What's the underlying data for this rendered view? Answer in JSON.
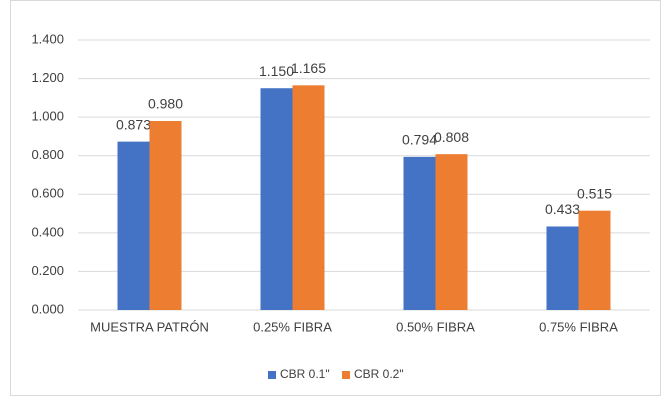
{
  "chart_data": {
    "type": "bar",
    "categories": [
      "MUESTRA PATRÓN",
      "0.25% FIBRA",
      "0.50% FIBRA",
      "0.75% FIBRA"
    ],
    "series": [
      {
        "name": "CBR 0.1\"",
        "color": "#4472c4",
        "values": [
          0.873,
          1.15,
          0.794,
          0.433
        ],
        "value_labels": [
          "0.873",
          "1.150",
          "0.794",
          "0.433"
        ]
      },
      {
        "name": "CBR 0.2\"",
        "color": "#ed7d31",
        "values": [
          0.98,
          1.165,
          0.808,
          0.515
        ],
        "value_labels": [
          "0.980",
          "1.165",
          "0.808",
          "0.515"
        ]
      }
    ],
    "ylim": [
      0,
      1.4
    ],
    "yticks": [
      {
        "value": 0,
        "label": "0.000"
      },
      {
        "value": 0.2,
        "label": "0.200"
      },
      {
        "value": 0.4,
        "label": "0.400"
      },
      {
        "value": 0.6,
        "label": "0.600"
      },
      {
        "value": 0.8,
        "label": "0.800"
      },
      {
        "value": 1,
        "label": "1.000"
      },
      {
        "value": 1.2,
        "label": "1.200"
      },
      {
        "value": 1.4,
        "label": "1.400"
      }
    ],
    "grid": true,
    "legend": "bottom"
  }
}
